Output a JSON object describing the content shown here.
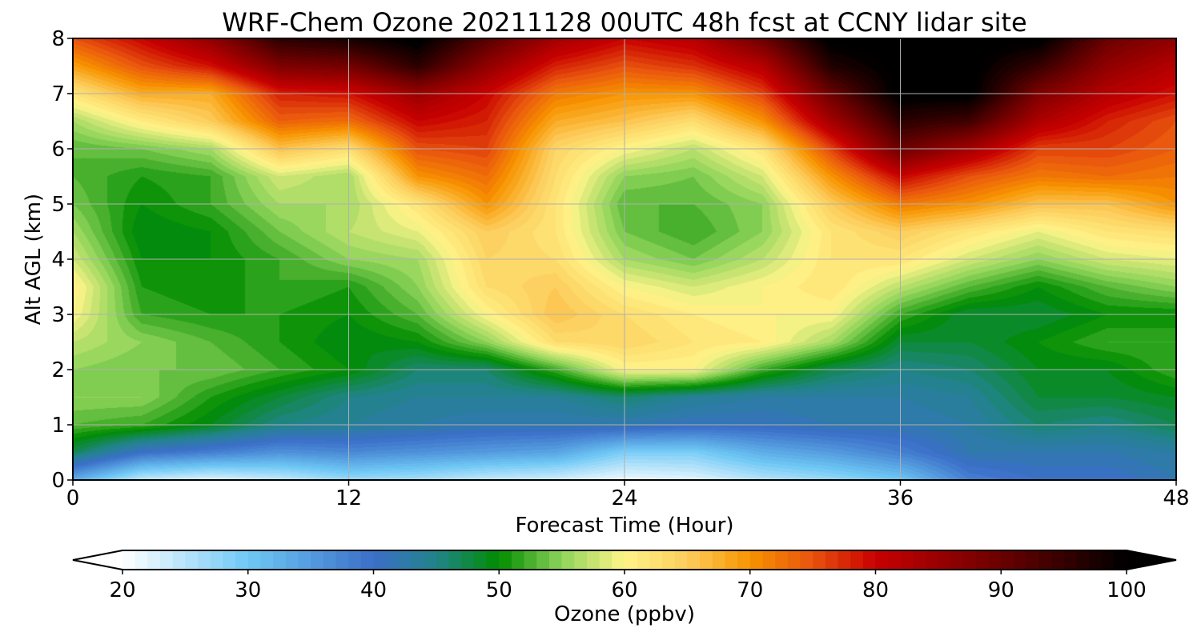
{
  "chart_data": {
    "type": "heatmap",
    "title": "WRF-Chem Ozone  20211128 00UTC 48h fcst at CCNY lidar site",
    "xlabel": "Forecast Time (Hour)",
    "ylabel": "Alt AGL (km)",
    "xlim": [
      0,
      48
    ],
    "ylim": [
      0,
      8
    ],
    "x_ticks": [
      0,
      12,
      24,
      36,
      48
    ],
    "y_ticks": [
      0,
      1,
      2,
      3,
      4,
      5,
      6,
      7,
      8
    ],
    "grid": true,
    "colorbar": {
      "label": "Ozone  (ppbv)",
      "range": [
        20,
        100
      ],
      "ticks": [
        20,
        30,
        40,
        50,
        60,
        70,
        80,
        90,
        100
      ],
      "extend": "both",
      "colormap_stops": [
        {
          "value": 20,
          "color": "#ffffff"
        },
        {
          "value": 30,
          "color": "#6fc8f5"
        },
        {
          "value": 40,
          "color": "#3a6fc8"
        },
        {
          "value": 45,
          "color": "#21848a"
        },
        {
          "value": 50,
          "color": "#008c00"
        },
        {
          "value": 55,
          "color": "#8fd45a"
        },
        {
          "value": 60,
          "color": "#fff48a"
        },
        {
          "value": 65,
          "color": "#fccd5c"
        },
        {
          "value": 70,
          "color": "#f89400"
        },
        {
          "value": 75,
          "color": "#e8520e"
        },
        {
          "value": 80,
          "color": "#c80000"
        },
        {
          "value": 90,
          "color": "#6a0000"
        },
        {
          "value": 100,
          "color": "#000000"
        }
      ]
    },
    "heights_km": [
      0,
      0.5,
      1,
      1.5,
      2,
      2.5,
      3,
      3.5,
      4,
      4.5,
      5,
      5.5,
      6,
      6.5,
      7,
      7.5,
      8
    ],
    "times_hour": [
      0,
      3,
      6,
      9,
      12,
      15,
      18,
      21,
      24,
      27,
      30,
      33,
      36,
      39,
      42,
      45,
      48
    ],
    "ozone_ppbv_by_height": [
      [
        33,
        24,
        22,
        24,
        27,
        26,
        24,
        23,
        21,
        22,
        25,
        27,
        30,
        38,
        40,
        40,
        42
      ],
      [
        47,
        40,
        38,
        36,
        37,
        36,
        35,
        34,
        29,
        29,
        33,
        35,
        38,
        42,
        42,
        42,
        43
      ],
      [
        53,
        52,
        49,
        45,
        44,
        43,
        42,
        42,
        42,
        41,
        41,
        42,
        42,
        43,
        46,
        45,
        47
      ],
      [
        55,
        55,
        51,
        48,
        45,
        44,
        44,
        44,
        46,
        44,
        43,
        43,
        43,
        44,
        48,
        48,
        49
      ],
      [
        55,
        54,
        54,
        52,
        50,
        46,
        46,
        52,
        60,
        60,
        52,
        47,
        45,
        46,
        49,
        49,
        52
      ],
      [
        57,
        55,
        53,
        51,
        49,
        50,
        55,
        63,
        64,
        62,
        61,
        56,
        48,
        48,
        50,
        52,
        52
      ],
      [
        60,
        52,
        51,
        51,
        50,
        53,
        60,
        66,
        63,
        61,
        60,
        60,
        52,
        48,
        48,
        50,
        50
      ],
      [
        61,
        51,
        50,
        52,
        51,
        55,
        63,
        65,
        60,
        58,
        60,
        62,
        57,
        53,
        50,
        53,
        55
      ],
      [
        58,
        50,
        50,
        52,
        55,
        56,
        64,
        63,
        56,
        54,
        57,
        62,
        62,
        58,
        55,
        58,
        59
      ],
      [
        56,
        49,
        50,
        54,
        57,
        59,
        65,
        62,
        54,
        52,
        55,
        62,
        65,
        62,
        59,
        62,
        63
      ],
      [
        54,
        50,
        52,
        56,
        56,
        62,
        70,
        62,
        53,
        53,
        55,
        65,
        72,
        70,
        66,
        66,
        70
      ],
      [
        53,
        51,
        52,
        58,
        56,
        70,
        73,
        63,
        55,
        54,
        58,
        70,
        80,
        75,
        72,
        73,
        72
      ],
      [
        53,
        54,
        56,
        66,
        63,
        75,
        76,
        64,
        60,
        57,
        62,
        76,
        90,
        84,
        76,
        76,
        74
      ],
      [
        56,
        61,
        65,
        74,
        73,
        80,
        78,
        68,
        66,
        63,
        70,
        84,
        96,
        94,
        83,
        78,
        75
      ],
      [
        62,
        68,
        68,
        78,
        79,
        85,
        80,
        72,
        70,
        70,
        76,
        90,
        101,
        101,
        88,
        82,
        79
      ],
      [
        69,
        75,
        79,
        88,
        89,
        96,
        86,
        78,
        75,
        77,
        82,
        97,
        101,
        101,
        95,
        86,
        82
      ],
      [
        75,
        80,
        86,
        96,
        98,
        101,
        92,
        84,
        80,
        82,
        90,
        101,
        101,
        101,
        101,
        90,
        86
      ]
    ]
  }
}
